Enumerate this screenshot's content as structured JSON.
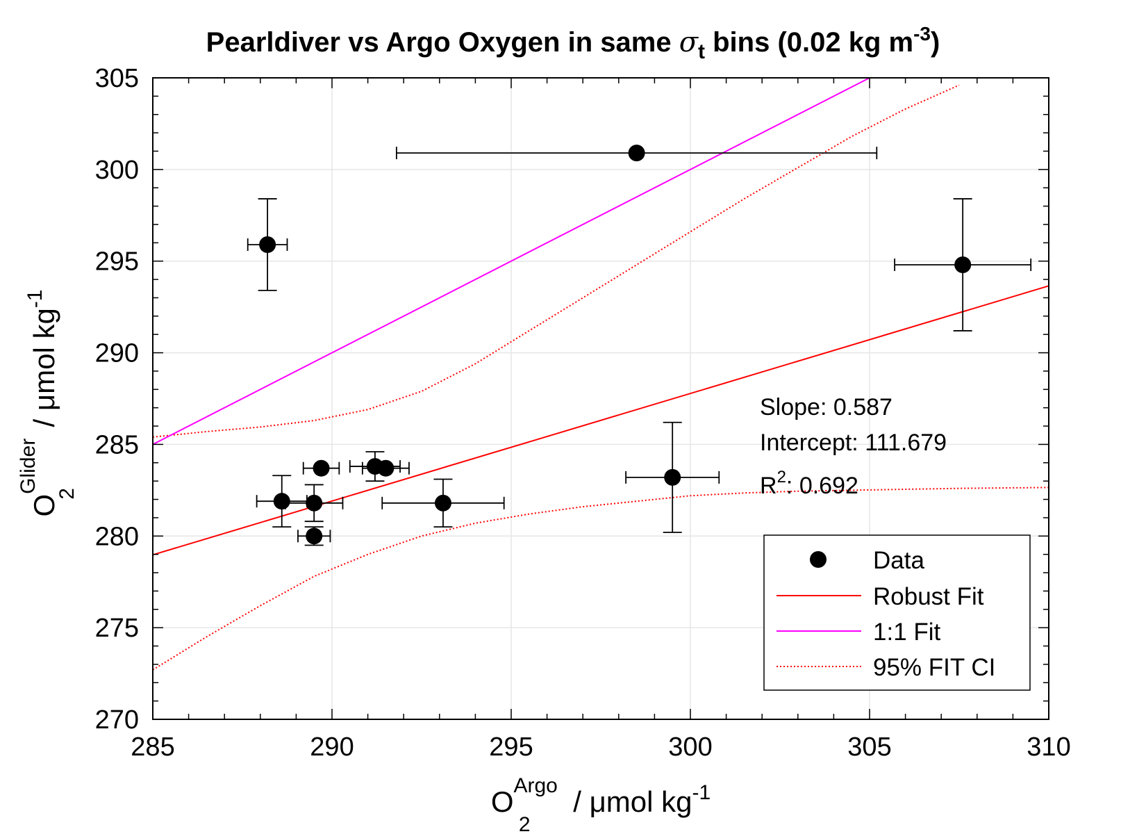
{
  "chart_data": {
    "type": "scatter",
    "title": {
      "pre": "Pearldiver vs Argo Oxygen in same ",
      "sigma": "σ",
      "sigma_sub": "t",
      "post_a": " bins (0.02 kg m",
      "post_sup": "-3",
      "post_b": ")"
    },
    "xlabel": {
      "base": "O",
      "sub": "2",
      "sup": "Argo",
      "unit": " / μmol kg",
      "unit_sup": "-1"
    },
    "ylabel": {
      "base": "O",
      "sub": "2",
      "sup": "Glider",
      "unit": " / μmol kg",
      "unit_sup": "-1"
    },
    "xlim": [
      285,
      310
    ],
    "ylim": [
      270,
      305
    ],
    "xticks": [
      285,
      290,
      295,
      300,
      305,
      310
    ],
    "yticks": [
      270,
      275,
      280,
      285,
      290,
      295,
      300,
      305
    ],
    "grid": true,
    "points": [
      {
        "x": 288.2,
        "y": 295.9,
        "xerr": 0.55,
        "yerr": 2.5
      },
      {
        "x": 298.5,
        "y": 300.9,
        "xerr": 6.7,
        "yerr": 0.0
      },
      {
        "x": 307.6,
        "y": 294.8,
        "xerr": 1.9,
        "yerr": 3.6
      },
      {
        "x": 299.5,
        "y": 283.2,
        "xerr": 1.3,
        "yerr": 3.0
      },
      {
        "x": 289.7,
        "y": 283.7,
        "xerr": 0.5,
        "yerr": 0.0
      },
      {
        "x": 291.2,
        "y": 283.8,
        "xerr": 0.7,
        "yerr": 0.8
      },
      {
        "x": 291.5,
        "y": 283.7,
        "xerr": 0.65,
        "yerr": 0.0
      },
      {
        "x": 288.6,
        "y": 281.9,
        "xerr": 0.7,
        "yerr": 1.4
      },
      {
        "x": 289.5,
        "y": 281.8,
        "xerr": 0.8,
        "yerr": 1.0
      },
      {
        "x": 293.1,
        "y": 281.8,
        "xerr": 1.7,
        "yerr": 1.3
      },
      {
        "x": 289.5,
        "y": 280.0,
        "xerr": 0.45,
        "yerr": 0.5
      }
    ],
    "robust_fit": {
      "slope": 0.587,
      "intercept": 111.679
    },
    "ci_upper": [
      [
        285,
        285.4
      ],
      [
        286.5,
        285.7
      ],
      [
        288,
        285.95
      ],
      [
        289.5,
        286.3
      ],
      [
        291,
        286.9
      ],
      [
        292.5,
        287.9
      ],
      [
        294,
        289.4
      ],
      [
        295.5,
        291.2
      ],
      [
        297,
        293.0
      ],
      [
        298.5,
        294.8
      ],
      [
        300,
        296.6
      ],
      [
        301.5,
        298.4
      ],
      [
        303,
        300.1
      ],
      [
        304.5,
        301.8
      ],
      [
        306,
        303.3
      ],
      [
        307.5,
        304.6
      ],
      [
        308.5,
        305.4
      ],
      [
        310,
        306.5
      ]
    ],
    "ci_lower": [
      [
        285,
        272.7
      ],
      [
        286.5,
        274.5
      ],
      [
        288,
        276.2
      ],
      [
        289.5,
        277.8
      ],
      [
        291,
        279.0
      ],
      [
        292.5,
        280.0
      ],
      [
        294,
        280.7
      ],
      [
        295.5,
        281.2
      ],
      [
        297,
        281.6
      ],
      [
        298.5,
        281.9
      ],
      [
        300,
        282.2
      ],
      [
        301.5,
        282.35
      ],
      [
        303,
        282.45
      ],
      [
        304.5,
        282.5
      ],
      [
        306,
        282.55
      ],
      [
        307.5,
        282.6
      ],
      [
        310,
        282.65
      ]
    ],
    "annotation": {
      "slope_label": "Slope: 0.587",
      "intercept_label": "Intercept: 111.679",
      "r2_base": "R",
      "r2_sup": "2",
      "r2_value": ": 0.692"
    },
    "legend": {
      "position": "bottom-right",
      "items": [
        {
          "label": "Data",
          "style": "marker"
        },
        {
          "label": "Robust Fit",
          "style": "solid",
          "color": "#ff0000"
        },
        {
          "label": "1:1 Fit",
          "style": "solid",
          "color": "#ff00ff"
        },
        {
          "label": "95% FIT CI",
          "style": "dotted",
          "color": "#ff0000"
        }
      ]
    },
    "colors": {
      "data": "#000000",
      "robust_fit": "#ff0000",
      "one_to_one": "#ff00ff",
      "ci": "#ff0000",
      "grid": "#e6e6e6"
    }
  }
}
